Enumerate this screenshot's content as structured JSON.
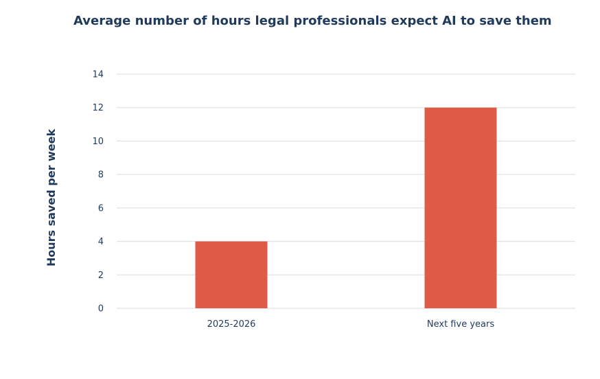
{
  "chart_data": {
    "type": "bar",
    "title": "Average number of hours legal professionals expect AI to save them",
    "xlabel": "",
    "ylabel": "Hours saved per week",
    "categories": [
      "2025-2026",
      "Next five years"
    ],
    "values": [
      4,
      12
    ],
    "ylim": [
      0,
      14
    ],
    "yticks": [
      0,
      2,
      4,
      6,
      8,
      10,
      12,
      14
    ],
    "grid": true,
    "legend": "none",
    "bar_color": "#e05a48"
  }
}
